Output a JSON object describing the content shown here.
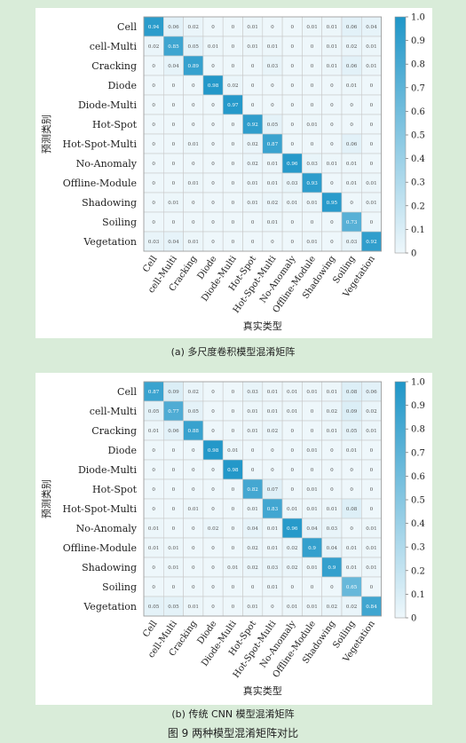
{
  "captions": {
    "panel_a": "(a)  多尺度卷积模型混淆矩阵",
    "panel_b": "(b)  传统 CNN 模型混淆矩阵",
    "figure": "图 9    两种模型混淆矩阵对比"
  },
  "colors": {
    "low": "#eef7fb",
    "high": "#1f96c8",
    "grid": "#c8c8c8",
    "text": "#222222"
  },
  "chart_data": [
    {
      "type": "heatmap",
      "xlabel": "真实类型",
      "ylabel": "预测类别",
      "categories": [
        "Cell",
        "cell-Multi",
        "Cracking",
        "Diode",
        "Diode-Multi",
        "Hot-Spot",
        "Hot-Spot-Multi",
        "No-Anomaly",
        "Offline-Module",
        "Shadowing",
        "Soiling",
        "Vegetation"
      ],
      "colorbar": {
        "min": 0,
        "max": 1.0,
        "ticks": [
          "0",
          "0.1",
          "0.2",
          "0.3",
          "0.4",
          "0.5",
          "0.6",
          "0.7",
          "0.8",
          "0.9",
          "1.0"
        ]
      },
      "matrix": [
        [
          "0.94",
          "0.06",
          "0.02",
          "0",
          "0",
          "0.01",
          "0",
          "0",
          "0.01",
          "0.01",
          "0.06",
          "0.04"
        ],
        [
          "0.02",
          "0.85",
          "0.05",
          "0.01",
          "0",
          "0.01",
          "0.01",
          "0",
          "0",
          "0.01",
          "0.02",
          "0.01"
        ],
        [
          "0",
          "0.04",
          "0.89",
          "0",
          "0",
          "0",
          "0.03",
          "0",
          "0",
          "0.01",
          "0.06",
          "0.01"
        ],
        [
          "0",
          "0",
          "0",
          "0.98",
          "0.02",
          "0",
          "0",
          "0",
          "0",
          "0",
          "0.01",
          "0"
        ],
        [
          "0",
          "0",
          "0",
          "0",
          "0.97",
          "0",
          "0",
          "0",
          "0",
          "0",
          "0",
          "0"
        ],
        [
          "0",
          "0",
          "0",
          "0",
          "0",
          "0.92",
          "0.05",
          "0",
          "0.01",
          "0",
          "0",
          "0"
        ],
        [
          "0",
          "0",
          "0.01",
          "0",
          "0",
          "0.02",
          "0.87",
          "0",
          "0",
          "0",
          "0.06",
          "0"
        ],
        [
          "0",
          "0",
          "0",
          "0",
          "0",
          "0.02",
          "0.01",
          "0.96",
          "0.03",
          "0.01",
          "0.01",
          "0"
        ],
        [
          "0",
          "0",
          "0.01",
          "0",
          "0",
          "0.01",
          "0.01",
          "0.03",
          "0.93",
          "0",
          "0.01",
          "0.01"
        ],
        [
          "0",
          "0.01",
          "0",
          "0",
          "0",
          "0.01",
          "0.02",
          "0.01",
          "0.01",
          "0.95",
          "0",
          "0.01"
        ],
        [
          "0",
          "0",
          "0",
          "0",
          "0",
          "0",
          "0.01",
          "0",
          "0",
          "0",
          "0.73",
          "0"
        ],
        [
          "0.03",
          "0.04",
          "0.01",
          "0",
          "0",
          "0",
          "0",
          "0",
          "0.01",
          "0",
          "0.03",
          "0.92"
        ]
      ]
    },
    {
      "type": "heatmap",
      "xlabel": "真实类型",
      "ylabel": "预测类别",
      "categories": [
        "Cell",
        "cell-Multi",
        "Cracking",
        "Diode",
        "Diode-Multi",
        "Hot-Spot",
        "Hot-Spot-Multi",
        "No-Anomaly",
        "Offline-Module",
        "Shadowing",
        "Soiling",
        "Vegetation"
      ],
      "colorbar": {
        "min": 0,
        "max": 1.0,
        "ticks": [
          "0",
          "0.1",
          "0.2",
          "0.3",
          "0.4",
          "0.5",
          "0.6",
          "0.7",
          "0.8",
          "0.9",
          "1.0"
        ]
      },
      "matrix": [
        [
          "0.87",
          "0.09",
          "0.02",
          "0",
          "0",
          "0.03",
          "0.01",
          "0.01",
          "0.01",
          "0.01",
          "0.08",
          "0.06"
        ],
        [
          "0.05",
          "0.77",
          "0.05",
          "0",
          "0",
          "0.01",
          "0.01",
          "0.01",
          "0",
          "0.02",
          "0.09",
          "0.02"
        ],
        [
          "0.01",
          "0.06",
          "0.88",
          "0",
          "0",
          "0.01",
          "0.02",
          "0",
          "0",
          "0.01",
          "0.05",
          "0.01"
        ],
        [
          "0",
          "0",
          "0",
          "0.98",
          "0.01",
          "0",
          "0",
          "0",
          "0.01",
          "0",
          "0.01",
          "0"
        ],
        [
          "0",
          "0",
          "0",
          "0",
          "0.98",
          "0",
          "0",
          "0",
          "0",
          "0",
          "0",
          "0"
        ],
        [
          "0",
          "0",
          "0",
          "0",
          "0",
          "0.82",
          "0.07",
          "0",
          "0.01",
          "0",
          "0",
          "0"
        ],
        [
          "0",
          "0",
          "0.01",
          "0",
          "0",
          "0.01",
          "0.83",
          "0.01",
          "0.01",
          "0.01",
          "0.08",
          "0"
        ],
        [
          "0.01",
          "0",
          "0",
          "0.02",
          "0",
          "0.04",
          "0.01",
          "0.96",
          "0.04",
          "0.03",
          "0",
          "0.01"
        ],
        [
          "0.01",
          "0.01",
          "0",
          "0",
          "0",
          "0.02",
          "0.01",
          "0.02",
          "0.9",
          "0.04",
          "0.01",
          "0.01"
        ],
        [
          "0",
          "0.01",
          "0",
          "0",
          "0.01",
          "0.02",
          "0.03",
          "0.02",
          "0.01",
          "0.9",
          "0.01",
          "0.01"
        ],
        [
          "0",
          "0",
          "0",
          "0",
          "0",
          "0",
          "0.01",
          "0",
          "0",
          "0",
          "0.65",
          "0"
        ],
        [
          "0.05",
          "0.05",
          "0.01",
          "0",
          "0",
          "0.01",
          "0",
          "0.01",
          "0.01",
          "0.02",
          "0.02",
          "0.84"
        ]
      ]
    }
  ]
}
